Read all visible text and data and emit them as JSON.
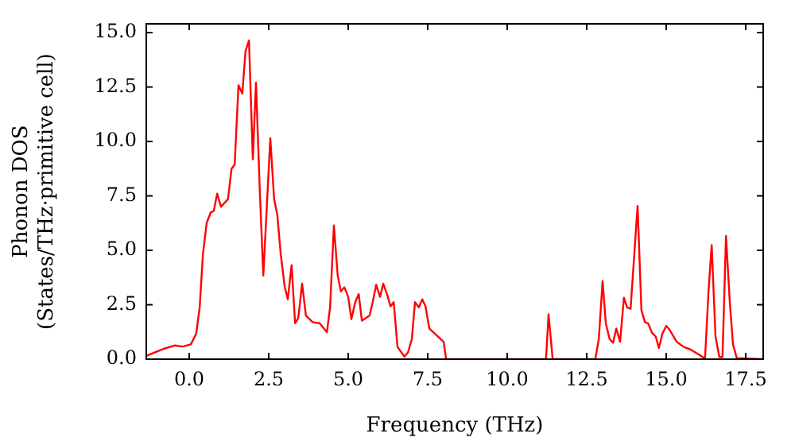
{
  "chart_data": {
    "type": "line",
    "xlabel": "Frequency (THz)",
    "ylabel": "Phonon DOS\n(States/THz·primitive cell)",
    "xlim": [
      -1.35,
      18.05
    ],
    "ylim": [
      0,
      15.4
    ],
    "xticks": [
      {
        "value": 0,
        "label": "0.0"
      },
      2.5,
      {
        "value": 5,
        "label": "5.0"
      },
      7.5,
      {
        "value": 10,
        "label": "10.0"
      },
      12.5,
      {
        "value": 15,
        "label": "15.0"
      },
      17.5
    ],
    "yticks": [
      {
        "value": 0,
        "label": "0.0"
      },
      2.5,
      {
        "value": 5,
        "label": "5.0"
      },
      7.5,
      {
        "value": 10,
        "label": "10.0"
      },
      12.5,
      {
        "value": 15,
        "label": "15.0"
      }
    ],
    "grid": false,
    "legend": false,
    "marker": "none",
    "line_style": "solid",
    "series": [
      {
        "color": "#ff0000",
        "x": [
          -1.35,
          -0.78,
          -0.45,
          -0.2,
          0.05,
          0.22,
          0.33,
          0.43,
          0.55,
          0.68,
          0.77,
          0.88,
          1.0,
          1.22,
          1.33,
          1.43,
          1.55,
          1.67,
          1.77,
          1.88,
          2.0,
          2.1,
          2.22,
          2.33,
          2.55,
          2.67,
          2.77,
          2.88,
          3.0,
          3.1,
          3.22,
          3.33,
          3.43,
          3.55,
          3.67,
          3.88,
          4.1,
          4.33,
          4.43,
          4.55,
          4.67,
          4.77,
          4.88,
          5.0,
          5.1,
          5.22,
          5.33,
          5.43,
          5.67,
          5.77,
          5.88,
          6.0,
          6.1,
          6.22,
          6.33,
          6.43,
          6.55,
          6.77,
          6.88,
          7.0,
          7.1,
          7.22,
          7.33,
          7.43,
          7.55,
          7.77,
          8.0,
          8.08,
          11.22,
          11.3,
          11.43,
          12.77,
          12.88,
          13.0,
          13.1,
          13.22,
          13.33,
          13.43,
          13.55,
          13.67,
          13.77,
          13.88,
          14.1,
          14.22,
          14.33,
          14.43,
          14.55,
          14.67,
          14.77,
          14.88,
          15.0,
          15.1,
          15.33,
          15.55,
          15.77,
          16.0,
          16.17,
          16.22,
          16.33,
          16.43,
          16.55,
          16.67,
          16.77,
          16.88,
          17.0,
          17.1,
          17.22,
          18.05
        ],
        "values": [
          0.15,
          0.49,
          0.63,
          0.58,
          0.68,
          1.17,
          2.38,
          4.8,
          6.26,
          6.75,
          6.8,
          7.6,
          7.0,
          7.35,
          8.74,
          8.94,
          12.58,
          12.2,
          14.15,
          14.64,
          9.18,
          12.7,
          7.72,
          3.84,
          10.15,
          7.36,
          6.63,
          4.8,
          3.35,
          2.75,
          4.32,
          1.65,
          1.89,
          3.47,
          2.0,
          1.7,
          1.65,
          1.24,
          2.38,
          6.14,
          3.84,
          3.11,
          3.3,
          2.86,
          1.84,
          2.62,
          2.99,
          1.77,
          2.0,
          2.62,
          3.42,
          2.86,
          3.47,
          2.99,
          2.43,
          2.62,
          0.56,
          0.12,
          0.31,
          0.92,
          2.62,
          2.38,
          2.75,
          2.43,
          1.41,
          1.11,
          0.8,
          0,
          0,
          2.06,
          0,
          0,
          0.92,
          3.59,
          1.65,
          0.92,
          0.75,
          1.41,
          0.8,
          2.82,
          2.38,
          2.31,
          7.04,
          2.26,
          1.7,
          1.65,
          1.22,
          1.04,
          0.51,
          1.17,
          1.53,
          1.36,
          0.8,
          0.56,
          0.44,
          0.24,
          0.07,
          0,
          3.11,
          5.24,
          1.04,
          0.1,
          0.1,
          5.66,
          2.62,
          0.68,
          0.05,
          0
        ]
      }
    ]
  }
}
